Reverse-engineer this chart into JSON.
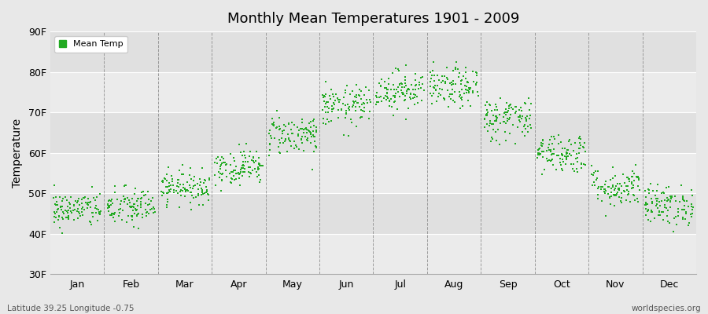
{
  "title": "Monthly Mean Temperatures 1901 - 2009",
  "ylabel": "Temperature",
  "bottom_left_label": "Latitude 39.25 Longitude -0.75",
  "bottom_right_label": "worldspecies.org",
  "legend_label": "Mean Temp",
  "dot_color": "#22aa22",
  "background_color": "#e8e8e8",
  "plot_bg_color": "#e8e8e8",
  "ylim": [
    30,
    90
  ],
  "yticks": [
    30,
    40,
    50,
    60,
    70,
    80,
    90
  ],
  "ytick_labels": [
    "30F",
    "40F",
    "50F",
    "60F",
    "70F",
    "80F",
    "90F"
  ],
  "months": [
    "Jan",
    "Feb",
    "Mar",
    "Apr",
    "May",
    "Jun",
    "Jul",
    "Aug",
    "Sep",
    "Oct",
    "Nov",
    "Dec"
  ],
  "month_centers": [
    0.5,
    1.5,
    2.5,
    3.5,
    4.5,
    5.5,
    6.5,
    7.5,
    8.5,
    9.5,
    10.5,
    11.5
  ],
  "month_boundaries": [
    0,
    1,
    2,
    3,
    4,
    5,
    6,
    7,
    8,
    9,
    10,
    11,
    12
  ],
  "month_means_F": [
    46.0,
    46.5,
    51.5,
    56.5,
    64.5,
    71.5,
    75.5,
    76.0,
    68.5,
    60.0,
    51.5,
    47.0
  ],
  "month_stds_F": [
    2.2,
    2.5,
    2.0,
    2.2,
    2.5,
    2.5,
    2.5,
    2.5,
    2.8,
    2.5,
    2.5,
    2.5
  ],
  "n_years": 109,
  "seed": 42,
  "band_colors": [
    "#ebebeb",
    "#e0e0e0"
  ]
}
